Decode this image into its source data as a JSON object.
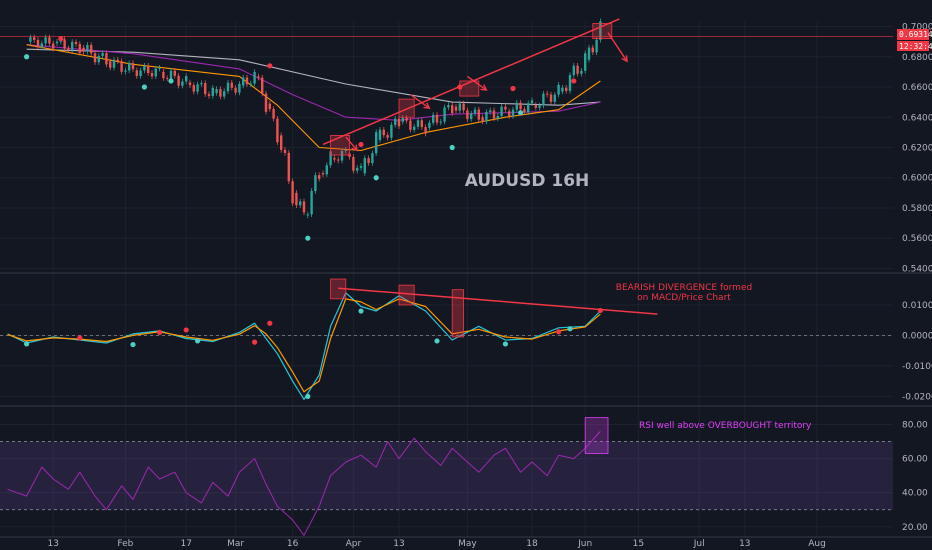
{
  "chart_data": [
    {
      "type": "line",
      "panel": "price",
      "title": "AUDUSD 16H",
      "x_ticks": [
        "13",
        "Feb",
        "17",
        "Mar",
        "16",
        "Apr",
        "13",
        "May",
        "18",
        "Jun",
        "15",
        "Jul",
        "13",
        "Aug"
      ],
      "y_ticks": [
        "0.70000",
        "0.68000",
        "0.66000",
        "0.64000",
        "0.62000",
        "0.60000",
        "0.58000",
        "0.56000",
        "0.54000"
      ],
      "ylim": [
        0.535,
        0.703
      ],
      "price_labels": {
        "last_price": "0.69314",
        "countdown": "12:32:42"
      },
      "series": [
        {
          "kind": "price",
          "x": [
            "2020-01-06",
            "2020-01-13",
            "2020-01-20",
            "2020-01-27",
            "2020-02-03",
            "2020-02-10",
            "2020-02-17",
            "2020-02-24",
            "2020-03-02",
            "2020-03-06",
            "2020-03-09",
            "2020-03-12",
            "2020-03-16",
            "2020-03-19",
            "2020-03-23",
            "2020-03-26",
            "2020-03-30",
            "2020-04-03",
            "2020-04-07",
            "2020-04-13",
            "2020-04-20",
            "2020-04-27",
            "2020-05-04",
            "2020-05-11",
            "2020-05-18",
            "2020-05-25",
            "2020-06-01",
            "2020-06-05"
          ],
          "values": [
            0.69,
            0.689,
            0.686,
            0.677,
            0.671,
            0.67,
            0.663,
            0.656,
            0.661,
            0.667,
            0.649,
            0.628,
            0.59,
            0.575,
            0.603,
            0.613,
            0.616,
            0.603,
            0.625,
            0.637,
            0.633,
            0.647,
            0.64,
            0.644,
            0.648,
            0.657,
            0.678,
            0.698
          ]
        },
        {
          "kind": "ma_grey",
          "color": "#b2b5be",
          "x": [
            "2020-01-06",
            "2020-02-03",
            "2020-03-02",
            "2020-03-30",
            "2020-04-27",
            "2020-05-25",
            "2020-06-05"
          ],
          "values": [
            0.685,
            0.683,
            0.678,
            0.662,
            0.65,
            0.648,
            0.65
          ]
        },
        {
          "kind": "ma_purple",
          "color": "#9c27b0",
          "x": [
            "2020-01-06",
            "2020-02-03",
            "2020-03-02",
            "2020-03-16",
            "2020-03-30",
            "2020-04-13",
            "2020-04-27",
            "2020-05-25",
            "2020-06-05"
          ],
          "values": [
            0.688,
            0.682,
            0.672,
            0.655,
            0.64,
            0.638,
            0.642,
            0.644,
            0.65
          ]
        },
        {
          "kind": "ma_orange",
          "color": "#ff9800",
          "x": [
            "2020-01-06",
            "2020-02-03",
            "2020-03-02",
            "2020-03-12",
            "2020-03-23",
            "2020-04-03",
            "2020-04-20",
            "2020-05-11",
            "2020-05-25",
            "2020-06-05"
          ],
          "values": [
            0.688,
            0.675,
            0.667,
            0.648,
            0.62,
            0.618,
            0.63,
            0.64,
            0.645,
            0.664
          ]
        }
      ],
      "markers_red": [
        [
          "2020-01-15",
          0.692
        ],
        [
          "2020-03-10",
          0.674
        ],
        [
          "2020-04-03",
          0.622
        ],
        [
          "2020-04-29",
          0.66
        ],
        [
          "2020-05-13",
          0.659
        ],
        [
          "2020-05-29",
          0.664
        ]
      ],
      "markers_teal": [
        [
          "2020-01-06",
          0.68
        ],
        [
          "2020-02-06",
          0.66
        ],
        [
          "2020-02-13",
          0.664
        ],
        [
          "2020-03-20",
          0.56
        ],
        [
          "2020-04-07",
          0.6
        ],
        [
          "2020-04-27",
          0.62
        ],
        [
          "2020-05-15",
          0.643
        ]
      ],
      "boxes": [
        [
          [
            "2020-03-26",
            0.628
          ],
          [
            "2020-03-31",
            0.615
          ]
        ],
        [
          [
            "2020-04-13",
            0.652
          ],
          [
            "2020-04-17",
            0.64
          ]
        ],
        [
          [
            "2020-04-29",
            0.664
          ],
          [
            "2020-05-04",
            0.654
          ]
        ],
        [
          [
            "2020-06-03",
            0.702
          ],
          [
            "2020-06-08",
            0.692
          ]
        ]
      ],
      "arrows": [
        [
          [
            "2020-03-30",
            0.627
          ],
          [
            "2020-04-02",
            0.618
          ]
        ],
        [
          [
            "2020-04-16",
            0.655
          ],
          [
            "2020-04-21",
            0.646
          ]
        ],
        [
          [
            "2020-05-01",
            0.667
          ],
          [
            "2020-05-06",
            0.658
          ]
        ],
        [
          [
            "2020-06-07",
            0.696
          ],
          [
            "2020-06-12",
            0.677
          ]
        ]
      ],
      "trendline": [
        [
          "2020-03-24",
          0.622
        ],
        [
          "2020-06-10",
          0.705
        ]
      ],
      "hline": 0.6935
    },
    {
      "type": "line",
      "panel": "macd",
      "y_ticks": [
        "0.01000",
        "0.00000",
        "-0.01000",
        "-0.02000"
      ],
      "ylim": [
        -0.0225,
        0.0195
      ],
      "annotation": [
        "BEARISH DIVERGENCE formed",
        "on MACD/Price Chart"
      ],
      "series": [
        {
          "kind": "macd",
          "color": "#26c6da",
          "x": [
            "2020-01-01",
            "2020-01-06",
            "2020-01-13",
            "2020-01-20",
            "2020-01-27",
            "2020-02-03",
            "2020-02-10",
            "2020-02-17",
            "2020-02-24",
            "2020-03-02",
            "2020-03-06",
            "2020-03-09",
            "2020-03-12",
            "2020-03-16",
            "2020-03-19",
            "2020-03-23",
            "2020-03-26",
            "2020-03-30",
            "2020-04-03",
            "2020-04-07",
            "2020-04-13",
            "2020-04-20",
            "2020-04-27",
            "2020-05-04",
            "2020-05-11",
            "2020-05-18",
            "2020-05-25",
            "2020-06-01",
            "2020-06-05"
          ],
          "values": [
            0.0005,
            -0.0025,
            -0.0005,
            -0.0015,
            -0.0025,
            0.0005,
            0.0015,
            -0.001,
            -0.002,
            0.001,
            0.004,
            -0.001,
            -0.006,
            -0.015,
            -0.021,
            -0.013,
            0.003,
            0.014,
            0.0095,
            0.008,
            0.013,
            0.008,
            -0.0015,
            0.003,
            -0.0015,
            -0.001,
            0.0025,
            0.003,
            0.008
          ]
        },
        {
          "kind": "signal",
          "color": "#ff9800",
          "x": [
            "2020-01-01",
            "2020-01-06",
            "2020-01-13",
            "2020-01-20",
            "2020-01-27",
            "2020-02-03",
            "2020-02-10",
            "2020-02-17",
            "2020-02-24",
            "2020-03-02",
            "2020-03-06",
            "2020-03-09",
            "2020-03-12",
            "2020-03-16",
            "2020-03-19",
            "2020-03-23",
            "2020-03-26",
            "2020-03-30",
            "2020-04-03",
            "2020-04-07",
            "2020-04-13",
            "2020-04-20",
            "2020-04-27",
            "2020-05-04",
            "2020-05-11",
            "2020-05-18",
            "2020-05-25",
            "2020-06-01",
            "2020-06-05"
          ],
          "values": [
            0.0003,
            -0.0018,
            -0.0008,
            -0.0012,
            -0.002,
            0.0,
            0.0012,
            -0.0005,
            -0.0016,
            0.0004,
            0.0032,
            0.0005,
            -0.004,
            -0.012,
            -0.0185,
            -0.015,
            -0.001,
            0.012,
            0.011,
            0.0085,
            0.012,
            0.0095,
            0.0005,
            0.002,
            -0.0005,
            -0.0012,
            0.0015,
            0.0028,
            0.007
          ]
        }
      ],
      "markers_red": [
        [
          "2020-01-20",
          -0.0008
        ],
        [
          "2020-02-10",
          0.001
        ],
        [
          "2020-02-17",
          0.0018
        ],
        [
          "2020-03-06",
          -0.0022
        ],
        [
          "2020-03-10",
          0.004
        ],
        [
          "2020-05-25",
          0.0012
        ],
        [
          "2020-06-05",
          0.0082
        ]
      ],
      "markers_teal": [
        [
          "2020-01-06",
          -0.0028
        ],
        [
          "2020-02-03",
          -0.003
        ],
        [
          "2020-02-20",
          -0.0018
        ],
        [
          "2020-03-20",
          -0.02
        ],
        [
          "2020-04-03",
          0.008
        ],
        [
          "2020-04-23",
          -0.0018
        ],
        [
          "2020-05-11",
          -0.0028
        ],
        [
          "2020-05-28",
          0.0022
        ]
      ],
      "boxes": [
        [
          [
            "2020-03-26",
            0.0185
          ],
          [
            "2020-03-30",
            0.012
          ]
        ],
        [
          [
            "2020-04-13",
            0.0165
          ],
          [
            "2020-04-17",
            0.01
          ]
        ],
        [
          [
            "2020-04-27",
            0.015
          ],
          [
            "2020-04-30",
            -0.0005
          ]
        ]
      ],
      "trendline": [
        [
          "2020-03-28",
          0.0155
        ],
        [
          "2020-06-20",
          0.007
        ]
      ]
    },
    {
      "type": "line",
      "panel": "rsi",
      "y_ticks": [
        "80.00",
        "60.00",
        "40.00",
        "20.00"
      ],
      "ylim": [
        14,
        92
      ],
      "levels": [
        70,
        30
      ],
      "annotation": "RSI well above OVERBOUGHT territory",
      "series": [
        {
          "kind": "rsi",
          "color": "#9c27b0",
          "x": [
            "2020-01-01",
            "2020-01-06",
            "2020-01-10",
            "2020-01-13",
            "2020-01-17",
            "2020-01-20",
            "2020-01-24",
            "2020-01-27",
            "2020-01-31",
            "2020-02-03",
            "2020-02-07",
            "2020-02-10",
            "2020-02-14",
            "2020-02-17",
            "2020-02-21",
            "2020-02-24",
            "2020-02-28",
            "2020-03-02",
            "2020-03-06",
            "2020-03-09",
            "2020-03-12",
            "2020-03-16",
            "2020-03-19",
            "2020-03-23",
            "2020-03-26",
            "2020-03-30",
            "2020-04-03",
            "2020-04-07",
            "2020-04-10",
            "2020-04-13",
            "2020-04-17",
            "2020-04-20",
            "2020-04-24",
            "2020-04-27",
            "2020-05-01",
            "2020-05-04",
            "2020-05-08",
            "2020-05-11",
            "2020-05-15",
            "2020-05-18",
            "2020-05-22",
            "2020-05-25",
            "2020-05-29",
            "2020-06-01",
            "2020-06-05"
          ],
          "values": [
            42,
            38,
            55,
            48,
            42,
            52,
            38,
            30,
            44,
            36,
            55,
            48,
            52,
            40,
            34,
            46,
            38,
            52,
            60,
            45,
            32,
            24,
            15,
            32,
            50,
            58,
            62,
            55,
            70,
            60,
            72,
            64,
            56,
            66,
            58,
            52,
            62,
            66,
            52,
            58,
            50,
            62,
            60,
            66,
            76
          ]
        }
      ],
      "box": [
        [
          "2020-06-01",
          84
        ],
        [
          "2020-06-07",
          63
        ]
      ]
    }
  ]
}
